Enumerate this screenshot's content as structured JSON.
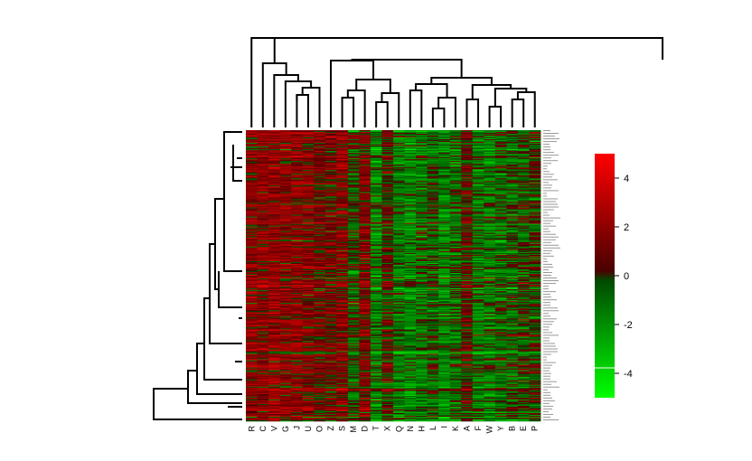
{
  "chart_data": {
    "type": "heatmap",
    "title": "",
    "xlabel": "",
    "ylabel": "",
    "columns": [
      "R",
      "C",
      "V",
      "G",
      "J",
      "U",
      "O",
      "Z",
      "S",
      "M",
      "D",
      "T",
      "X",
      "Q",
      "N",
      "H",
      "L",
      "I",
      "K",
      "A",
      "F",
      "W",
      "Y",
      "B",
      "E",
      "P"
    ],
    "column_profile": [
      0.9,
      1.0,
      1.2,
      0.9,
      1.0,
      0.8,
      0.6,
      0.5,
      0.9,
      -0.2,
      0.7,
      -0.9,
      0.2,
      -0.8,
      -1.0,
      -0.7,
      -0.4,
      -0.9,
      -0.6,
      0.3,
      -0.7,
      -0.8,
      -0.6,
      -0.5,
      -0.2,
      -0.1
    ],
    "row_count": 320,
    "row_labels_note": "row labels rendered at unreadable size",
    "value_range": [
      -5,
      5
    ],
    "colorbar": {
      "ticks": [
        4,
        2,
        0,
        -2,
        -4
      ],
      "colors": {
        "low": "#00ff00",
        "mid_low": "#006400",
        "mid_high": "#5a0000",
        "high": "#ff0000"
      }
    },
    "column_dendrogram": true,
    "row_dendrogram": true
  }
}
